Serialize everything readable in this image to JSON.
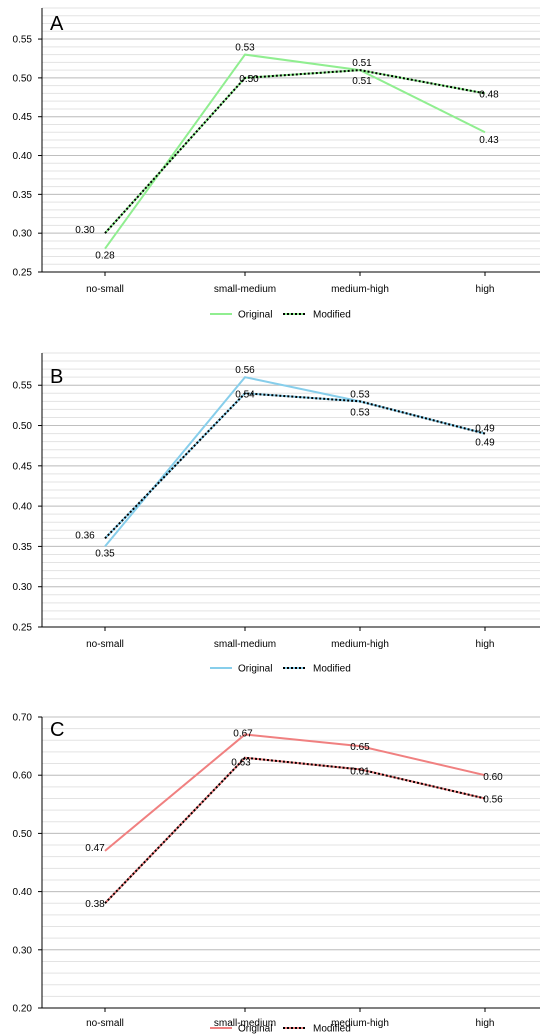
{
  "charts": [
    {
      "panel_label": "A",
      "type": "line",
      "categories": [
        "no-small",
        "small-medium",
        "medium-high",
        "high"
      ],
      "ylim": [
        0.25,
        0.59
      ],
      "yticks": [
        "0.25",
        "0.30",
        "0.35",
        "0.40",
        "0.45",
        "0.50",
        "0.55"
      ],
      "minor_step": 0.01,
      "series": [
        {
          "name": "Original",
          "color": "#90ee90",
          "style": "solid",
          "values": [
            0.28,
            0.53,
            0.51,
            0.43
          ],
          "labels": [
            "0.28",
            "0.53",
            "0.51",
            "0.43"
          ]
        },
        {
          "name": "Modified",
          "color": "#000000",
          "style": "dotted",
          "under_color": "#90ee90",
          "values": [
            0.3,
            0.5,
            0.51,
            0.48
          ],
          "labels": [
            "0.30",
            "0.50",
            "0.51",
            "0.48"
          ]
        }
      ],
      "legend_position": "bottom-center"
    },
    {
      "panel_label": "B",
      "type": "line",
      "categories": [
        "no-small",
        "small-medium",
        "medium-high",
        "high"
      ],
      "ylim": [
        0.25,
        0.59
      ],
      "yticks": [
        "0.25",
        "0.30",
        "0.35",
        "0.40",
        "0.45",
        "0.50",
        "0.55"
      ],
      "minor_step": 0.01,
      "series": [
        {
          "name": "Original",
          "color": "#87ceeb",
          "style": "solid",
          "values": [
            0.35,
            0.56,
            0.53,
            0.49
          ],
          "labels": [
            "0.35",
            "0.56",
            "0.53",
            "0.49"
          ]
        },
        {
          "name": "Modified",
          "color": "#000000",
          "style": "dotted",
          "under_color": "#87ceeb",
          "values": [
            0.36,
            0.54,
            0.53,
            0.49
          ],
          "labels": [
            "0.36",
            "0.54",
            "0.53",
            "0.49"
          ]
        }
      ],
      "legend_position": "bottom-center"
    },
    {
      "panel_label": "C",
      "type": "line",
      "categories": [
        "no-small",
        "small-medium",
        "medium-high",
        "high"
      ],
      "ylim": [
        0.2,
        0.7
      ],
      "yticks": [
        "0.20",
        "0.30",
        "0.40",
        "0.50",
        "0.60",
        "0.70"
      ],
      "minor_step": 0.02,
      "series": [
        {
          "name": "Original",
          "color": "#f08080",
          "style": "solid",
          "values": [
            0.47,
            0.67,
            0.65,
            0.6
          ],
          "labels": [
            "0.47",
            "0.67",
            "0.65",
            "0.60"
          ]
        },
        {
          "name": "Modified",
          "color": "#000000",
          "style": "dotted",
          "under_color": "#f08080",
          "values": [
            0.38,
            0.63,
            0.61,
            0.56
          ],
          "labels": [
            "0.38",
            "0.63",
            "0.61",
            "0.56"
          ]
        }
      ],
      "legend_position": "bottom-center"
    }
  ]
}
